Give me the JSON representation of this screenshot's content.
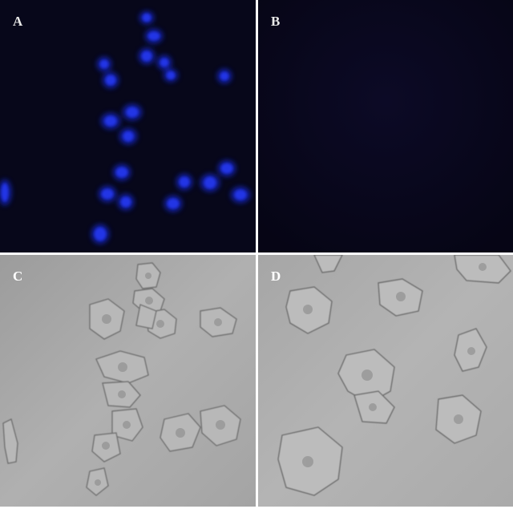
{
  "panels": [
    {
      "label": "A",
      "type": "fluorescence",
      "label_color": "#e8e8e8"
    },
    {
      "label": "B",
      "type": "fluorescence-dark",
      "label_color": "#e8e8e8"
    },
    {
      "label": "C",
      "type": "brightfield",
      "label_color": "#ffffff"
    },
    {
      "label": "D",
      "type": "brightfield",
      "label_color": "#ffffff"
    }
  ],
  "colors": {
    "fluorescence_bg": "#07071a",
    "nucleus": "#1a2cd6",
    "dark_bg": "#08071c",
    "brightfield_bg": "#a8a8a8",
    "divider": "#ffffff"
  }
}
